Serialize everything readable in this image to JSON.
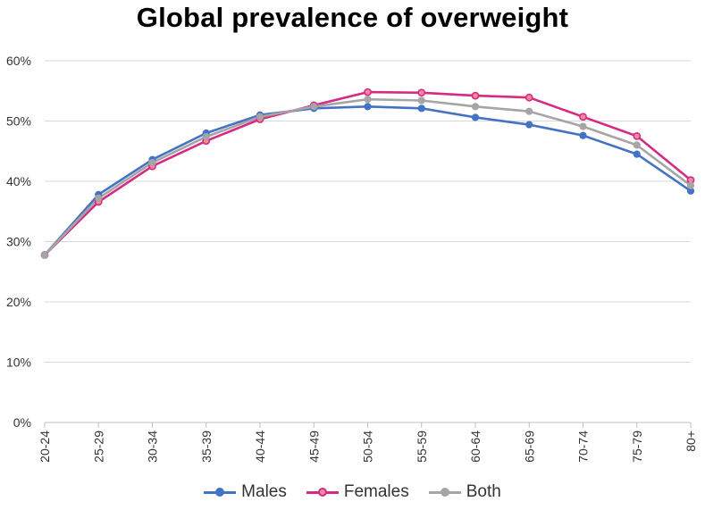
{
  "chart_data": {
    "type": "line",
    "title": "Global prevalence of overweight",
    "xlabel": "",
    "ylabel": "",
    "ylim": [
      0,
      0.6
    ],
    "yticks": [
      0,
      0.1,
      0.2,
      0.3,
      0.4,
      0.5,
      0.6
    ],
    "ytick_labels": [
      "0%",
      "10%",
      "20%",
      "30%",
      "40%",
      "50%",
      "60%"
    ],
    "categories": [
      "20-24",
      "25-29",
      "30-34",
      "35-39",
      "40-44",
      "45-49",
      "50-54",
      "55-59",
      "60-64",
      "65-69",
      "70-74",
      "75-79",
      "80+"
    ],
    "grid": true,
    "legend_position": "bottom",
    "series": [
      {
        "name": "Males",
        "color": "#4472c4",
        "values": [
          0.278,
          0.378,
          0.436,
          0.48,
          0.51,
          0.521,
          0.524,
          0.521,
          0.506,
          0.494,
          0.476,
          0.445,
          0.384
        ]
      },
      {
        "name": "Females",
        "color": "#d62b83",
        "values": [
          0.278,
          0.366,
          0.425,
          0.467,
          0.503,
          0.526,
          0.548,
          0.547,
          0.542,
          0.539,
          0.507,
          0.475,
          0.402
        ]
      },
      {
        "name": "Both",
        "color": "#a5a5a5",
        "values": [
          0.278,
          0.372,
          0.431,
          0.474,
          0.507,
          0.524,
          0.536,
          0.534,
          0.524,
          0.516,
          0.491,
          0.46,
          0.393
        ]
      }
    ]
  }
}
